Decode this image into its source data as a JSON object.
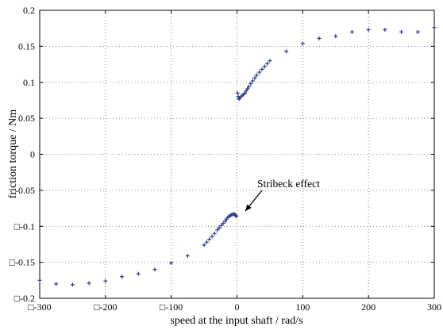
{
  "chart_data": {
    "type": "scatter",
    "xlabel": "speed at the input shaft / rad/s",
    "ylabel": "friction torque / Nm",
    "xlim": [
      -300,
      300
    ],
    "ylim": [
      -0.2,
      0.2
    ],
    "x_ticks": [
      {
        "value": -300,
        "label": "□-300"
      },
      {
        "value": -200,
        "label": "□-200"
      },
      {
        "value": -100,
        "label": "□-100"
      },
      {
        "value": 0,
        "label": "0"
      },
      {
        "value": 100,
        "label": "100"
      },
      {
        "value": 200,
        "label": "200"
      },
      {
        "value": 300,
        "label": "300"
      }
    ],
    "y_ticks": [
      {
        "value": 0.2,
        "label": "0.2"
      },
      {
        "value": 0.15,
        "label": "0.15"
      },
      {
        "value": 0.1,
        "label": "0.1"
      },
      {
        "value": 0.05,
        "label": "0.05"
      },
      {
        "value": 0,
        "label": "0"
      },
      {
        "value": -0.05,
        "label": "-0.05"
      },
      {
        "value": -0.1,
        "label": "□-0.1"
      },
      {
        "value": -0.15,
        "label": "□-0.15"
      },
      {
        "value": -0.2,
        "label": "□-0.2"
      }
    ],
    "grid": true,
    "marker_color": "#2b3a8f",
    "annotation": {
      "text": "Stribeck effect",
      "x": 0,
      "y": -0.083
    },
    "series": [
      {
        "x": [
          -300,
          -275,
          -250,
          -225,
          -200,
          -175,
          -150,
          -125,
          -100,
          -75,
          -50,
          -46,
          -42,
          -38,
          -34,
          -30,
          -27,
          -24,
          -21,
          -18,
          -16,
          -14,
          -12,
          -10,
          -8,
          -6,
          -4,
          -3,
          -2,
          -1,
          1,
          2,
          3,
          4,
          6,
          8,
          10,
          12,
          14,
          16,
          18,
          21,
          24,
          27,
          30,
          34,
          38,
          42,
          46,
          50,
          75,
          100,
          125,
          150,
          175,
          200,
          225,
          250,
          275,
          300
        ],
        "y": [
          -0.175,
          -0.18,
          -0.181,
          -0.179,
          -0.176,
          -0.17,
          -0.166,
          -0.16,
          -0.151,
          -0.141,
          -0.126,
          -0.122,
          -0.118,
          -0.114,
          -0.11,
          -0.105,
          -0.102,
          -0.099,
          -0.096,
          -0.093,
          -0.09,
          -0.088,
          -0.086,
          -0.085,
          -0.084,
          -0.083,
          -0.083,
          -0.084,
          -0.085,
          -0.086,
          0.085,
          0.08,
          0.077,
          0.078,
          0.08,
          0.082,
          0.083,
          0.085,
          0.088,
          0.091,
          0.094,
          0.098,
          0.102,
          0.106,
          0.11,
          0.114,
          0.118,
          0.122,
          0.126,
          0.13,
          0.143,
          0.154,
          0.161,
          0.164,
          0.17,
          0.173,
          0.173,
          0.17,
          0.17,
          0.176
        ]
      }
    ]
  }
}
